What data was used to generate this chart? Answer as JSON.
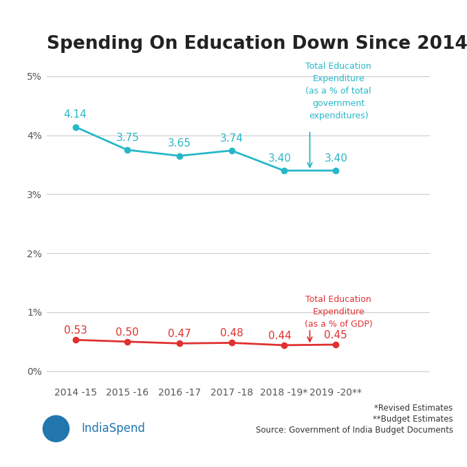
{
  "title": "Spending On Education Down Since 2014",
  "categories": [
    "2014 -15",
    "2015 -16",
    "2016 -17",
    "2017 -18",
    "2018 -19*",
    "2019 -20**"
  ],
  "teal_values": [
    4.14,
    3.75,
    3.65,
    3.74,
    3.4,
    3.4
  ],
  "red_values": [
    0.53,
    0.5,
    0.47,
    0.48,
    0.44,
    0.45
  ],
  "teal_color": "#26b8c8",
  "red_color": "#e03030",
  "background_color": "#ffffff",
  "grid_color": "#cccccc",
  "yticks": [
    0,
    1,
    2,
    3,
    4,
    5
  ],
  "ytick_labels": [
    "0%",
    "1%",
    "2%",
    "3%",
    "4%",
    "5%"
  ],
  "ylim": [
    -0.2,
    5.5
  ],
  "xlim": [
    -0.55,
    6.8
  ],
  "teal_label": "Total Education\nExpenditure\n(as a % of total\ngovernment\nexpenditures)",
  "red_label": "Total Education\nExpenditure\n(as a % of GDP)",
  "footnote1": "*Revised Estimates",
  "footnote2": "**Budget Estimates",
  "footnote3": "Source: Government of India Budget Documents",
  "brand_name": "IndiaSpend",
  "title_fontsize": 19,
  "tick_fontsize": 10,
  "value_fontsize": 11,
  "annot_fontsize": 9
}
